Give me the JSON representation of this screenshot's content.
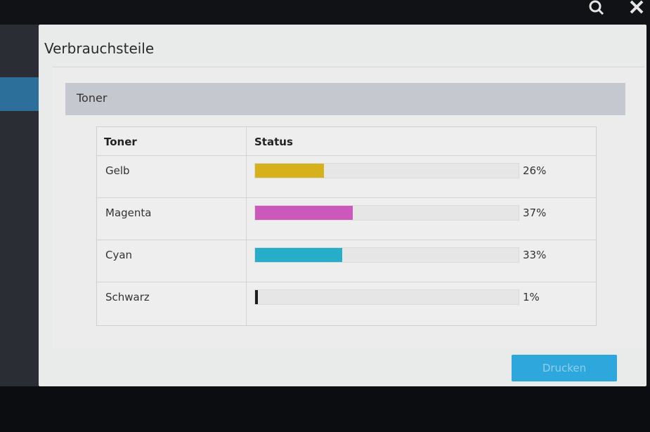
{
  "dialog": {
    "title": "Verbrauchsteile",
    "section": "Toner",
    "table": {
      "headers": [
        "Toner",
        "Status"
      ],
      "rows": [
        {
          "name": "Gelb",
          "level": 26,
          "level_label": "26%",
          "color": "#d6b11c"
        },
        {
          "name": "Magenta",
          "level": 37,
          "level_label": "37%",
          "color": "#cc58bc"
        },
        {
          "name": "Cyan",
          "level": 33,
          "level_label": "33%",
          "color": "#25adc9"
        },
        {
          "name": "Schwarz",
          "level": 1,
          "level_label": "1%",
          "color": "#1e1e1e"
        }
      ]
    },
    "button": "Drucken"
  }
}
